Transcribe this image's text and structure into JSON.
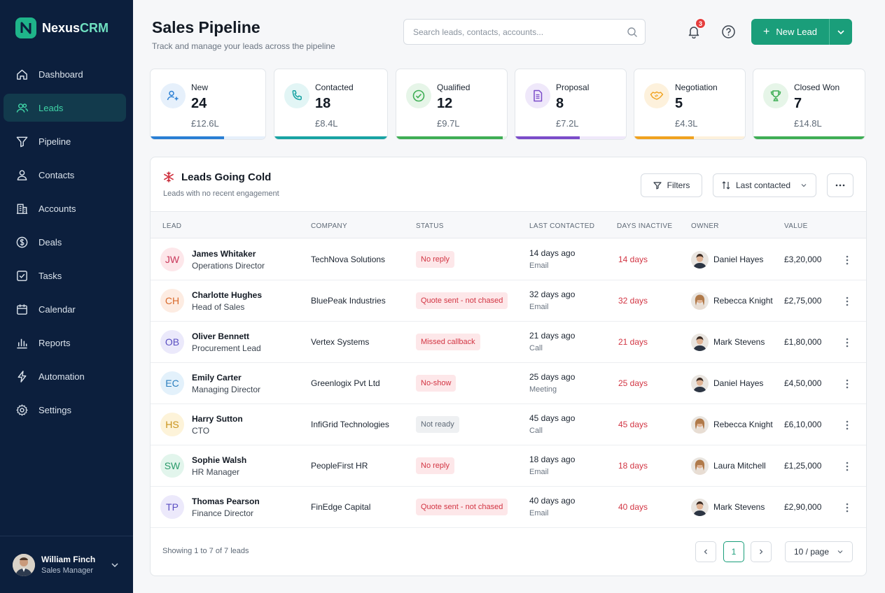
{
  "brand": {
    "name_a": "Nexus",
    "name_b": "CRM"
  },
  "sidebar": {
    "items": [
      {
        "label": "Dashboard",
        "icon": "home-icon"
      },
      {
        "label": "Leads",
        "icon": "users-icon",
        "active": true
      },
      {
        "label": "Pipeline",
        "icon": "funnel-icon"
      },
      {
        "label": "Contacts",
        "icon": "person-icon"
      },
      {
        "label": "Accounts",
        "icon": "building-icon"
      },
      {
        "label": "Deals",
        "icon": "dollar-icon"
      },
      {
        "label": "Tasks",
        "icon": "checkbox-icon"
      },
      {
        "label": "Calendar",
        "icon": "calendar-icon"
      },
      {
        "label": "Reports",
        "icon": "bar-chart-icon"
      },
      {
        "label": "Automation",
        "icon": "bolt-icon"
      },
      {
        "label": "Settings",
        "icon": "gear-icon"
      }
    ],
    "user": {
      "name": "William Finch",
      "role": "Sales Manager"
    }
  },
  "header": {
    "title": "Sales Pipeline",
    "subtitle": "Track and manage your leads across the pipeline",
    "search_placeholder": "Search leads, contacts, accounts...",
    "notification_count": "3",
    "new_lead_label": "New Lead"
  },
  "stats": [
    {
      "label": "New",
      "count": "24",
      "value": "£12.6L",
      "color": "#2a7fd4",
      "tint": "#e6f0fb",
      "progress": 0.64,
      "icon": "user-plus-icon"
    },
    {
      "label": "Contacted",
      "count": "18",
      "value": "£8.4L",
      "color": "#18a3a3",
      "tint": "#e2f5f5",
      "progress": 1.0,
      "icon": "phone-icon"
    },
    {
      "label": "Qualified",
      "count": "12",
      "value": "£9.7L",
      "color": "#3fae55",
      "tint": "#e6f5e8",
      "progress": 0.96,
      "icon": "check-circle-icon"
    },
    {
      "label": "Proposal",
      "count": "8",
      "value": "£7.2L",
      "color": "#7b4cc9",
      "tint": "#efe8fa",
      "progress": 0.58,
      "icon": "document-icon"
    },
    {
      "label": "Negotiation",
      "count": "5",
      "value": "£4.3L",
      "color": "#f0a21f",
      "tint": "#fdf1dc",
      "progress": 0.54,
      "icon": "handshake-icon"
    },
    {
      "label": "Closed Won",
      "count": "7",
      "value": "£14.8L",
      "color": "#3fae55",
      "tint": "#e6f5e8",
      "progress": 1.0,
      "icon": "trophy-icon"
    }
  ],
  "panel": {
    "title": "Leads Going Cold",
    "subtitle": "Leads with no recent engagement",
    "filters_label": "Filters",
    "sort_label": "Last contacted",
    "columns": [
      "LEAD",
      "COMPANY",
      "STATUS",
      "LAST CONTACTED",
      "DAYS INACTIVE",
      "OWNER",
      "VALUE"
    ],
    "rows": [
      {
        "initials": "JW",
        "name": "James Whitaker",
        "role": "Operations Director",
        "company": "TechNova Solutions",
        "status": "No reply",
        "status_type": "red",
        "last": "14 days ago",
        "channel": "Email",
        "days": "14 days",
        "owner": "Daniel Hayes",
        "owner_gender": "m",
        "value": "£3,20,000",
        "av_bg": "#fde7ea",
        "av_fg": "#c9375a"
      },
      {
        "initials": "CH",
        "name": "Charlotte Hughes",
        "role": "Head of Sales",
        "company": "BluePeak Industries",
        "status": "Quote sent - not chased",
        "status_type": "red",
        "last": "32 days ago",
        "channel": "Email",
        "days": "32 days",
        "owner": "Rebecca Knight",
        "owner_gender": "f",
        "value": "£2,75,000",
        "av_bg": "#fdece2",
        "av_fg": "#d96a2c"
      },
      {
        "initials": "OB",
        "name": "Oliver Bennett",
        "role": "Procurement Lead",
        "company": "Vertex Systems",
        "status": "Missed callback",
        "status_type": "red",
        "last": "21 days ago",
        "channel": "Call",
        "days": "21 days",
        "owner": "Mark Stevens",
        "owner_gender": "m",
        "value": "£1,80,000",
        "av_bg": "#ebe9fb",
        "av_fg": "#5a4ec2"
      },
      {
        "initials": "EC",
        "name": "Emily Carter",
        "role": "Managing Director",
        "company": "Greenlogix Pvt Ltd",
        "status": "No-show",
        "status_type": "red",
        "last": "25 days ago",
        "channel": "Meeting",
        "days": "25 days",
        "owner": "Daniel Hayes",
        "owner_gender": "m",
        "value": "£4,50,000",
        "av_bg": "#e3f1fb",
        "av_fg": "#2c7fbf"
      },
      {
        "initials": "HS",
        "name": "Harry Sutton",
        "role": "CTO",
        "company": "InfiGrid Technologies",
        "status": "Not ready",
        "status_type": "grey",
        "last": "45 days ago",
        "channel": "Call",
        "days": "45 days",
        "owner": "Rebecca Knight",
        "owner_gender": "f",
        "value": "£6,10,000",
        "av_bg": "#fdf3d9",
        "av_fg": "#c9921b"
      },
      {
        "initials": "SW",
        "name": "Sophie Walsh",
        "role": "HR Manager",
        "company": "PeopleFirst HR",
        "status": "No reply",
        "status_type": "red",
        "last": "18 days ago",
        "channel": "Email",
        "days": "18 days",
        "owner": "Laura Mitchell",
        "owner_gender": "f",
        "value": "£1,25,000",
        "av_bg": "#e2f5ec",
        "av_fg": "#2a9a6a"
      },
      {
        "initials": "TP",
        "name": "Thomas Pearson",
        "role": "Finance Director",
        "company": "FinEdge Capital",
        "status": "Quote sent - not chased",
        "status_type": "red",
        "last": "40 days ago",
        "channel": "Email",
        "days": "40 days",
        "owner": "Mark Stevens",
        "owner_gender": "m",
        "value": "£2,90,000",
        "av_bg": "#ece9fb",
        "av_fg": "#5a4ec2"
      }
    ],
    "footer": {
      "showing": "Showing 1 to 7 of 7 leads",
      "page": "1",
      "per_page": "10 / page"
    }
  }
}
